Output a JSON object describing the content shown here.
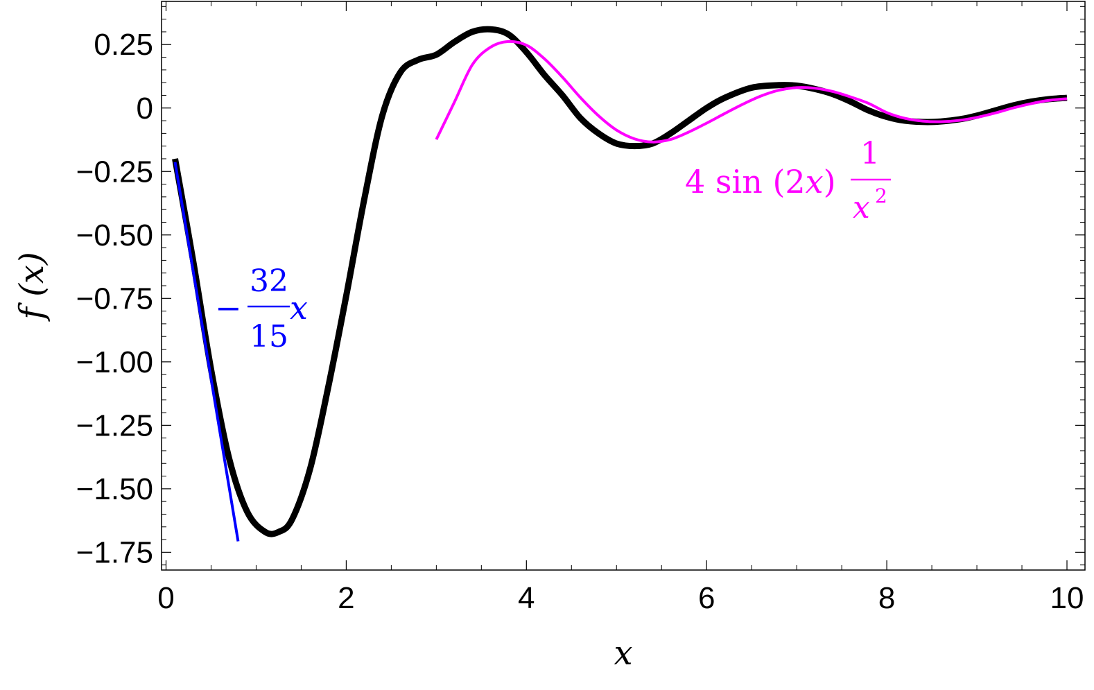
{
  "chart_data": {
    "type": "line",
    "xlabel": "x",
    "ylabel": "f (x)",
    "xlim": [
      -0.05,
      10.2
    ],
    "ylim": [
      -1.82,
      0.42
    ],
    "grid": false,
    "frame": "full box with ticks on all sides",
    "x_ticks": [
      {
        "value": 0,
        "label": "0"
      },
      {
        "value": 2,
        "label": "2"
      },
      {
        "value": 4,
        "label": "4"
      },
      {
        "value": 6,
        "label": "6"
      },
      {
        "value": 8,
        "label": "8"
      },
      {
        "value": 10,
        "label": "10"
      }
    ],
    "y_ticks": [
      {
        "value": 0.25,
        "label": "0.25"
      },
      {
        "value": 0,
        "label": "0"
      },
      {
        "value": -0.25,
        "label": "−0.25"
      },
      {
        "value": -0.5,
        "label": "−0.50"
      },
      {
        "value": -0.75,
        "label": "−0.75"
      },
      {
        "value": -1.0,
        "label": "−1.00"
      },
      {
        "value": -1.25,
        "label": "−1.25"
      },
      {
        "value": -1.5,
        "label": "−1.50"
      },
      {
        "value": -1.75,
        "label": "−1.75"
      }
    ],
    "series": [
      {
        "color": "#000000",
        "points": [
          [
            0.1,
            -0.2
          ],
          [
            0.3,
            -0.6
          ],
          [
            0.5,
            -1.03
          ],
          [
            0.7,
            -1.38
          ],
          [
            0.9,
            -1.59
          ],
          [
            1.1,
            -1.67
          ],
          [
            1.25,
            -1.67
          ],
          [
            1.4,
            -1.62
          ],
          [
            1.6,
            -1.42
          ],
          [
            1.8,
            -1.1
          ],
          [
            2.0,
            -0.74
          ],
          [
            2.2,
            -0.36
          ],
          [
            2.4,
            -0.03
          ],
          [
            2.6,
            0.14
          ],
          [
            2.8,
            0.19
          ],
          [
            3.0,
            0.21
          ],
          [
            3.2,
            0.26
          ],
          [
            3.4,
            0.3
          ],
          [
            3.6,
            0.31
          ],
          [
            3.8,
            0.29
          ],
          [
            4.0,
            0.22
          ],
          [
            4.2,
            0.13
          ],
          [
            4.4,
            0.05
          ],
          [
            4.6,
            -0.04
          ],
          [
            4.8,
            -0.1
          ],
          [
            5.0,
            -0.14
          ],
          [
            5.2,
            -0.15
          ],
          [
            5.4,
            -0.14
          ],
          [
            5.6,
            -0.1
          ],
          [
            5.8,
            -0.05
          ],
          [
            6.0,
            0.0
          ],
          [
            6.2,
            0.04
          ],
          [
            6.5,
            0.08
          ],
          [
            6.8,
            0.09
          ],
          [
            7.0,
            0.088
          ],
          [
            7.2,
            0.075
          ],
          [
            7.4,
            0.055
          ],
          [
            7.6,
            0.025
          ],
          [
            7.8,
            -0.01
          ],
          [
            8.0,
            -0.035
          ],
          [
            8.2,
            -0.05
          ],
          [
            8.5,
            -0.055
          ],
          [
            8.8,
            -0.045
          ],
          [
            9.0,
            -0.03
          ],
          [
            9.2,
            -0.01
          ],
          [
            9.4,
            0.01
          ],
          [
            9.6,
            0.025
          ],
          [
            9.8,
            0.035
          ],
          [
            10.0,
            0.04
          ]
        ]
      },
      {
        "color": "#0000ff",
        "points": [
          [
            0.1,
            -0.2133
          ],
          [
            0.8,
            -1.7067
          ]
        ]
      },
      {
        "color": "#ff00ff",
        "points": [
          [
            3.0,
            -0.124
          ],
          [
            3.2,
            0.0226
          ],
          [
            3.4,
            0.1705
          ],
          [
            3.6,
            0.2391
          ],
          [
            3.8,
            0.2618
          ],
          [
            4.0,
            0.2474
          ],
          [
            4.2,
            0.1939
          ],
          [
            4.4,
            0.1215
          ],
          [
            4.6,
            0.0409
          ],
          [
            4.8,
            -0.0305
          ],
          [
            5.0,
            -0.087
          ],
          [
            5.2,
            -0.1215
          ],
          [
            5.4,
            -0.134
          ],
          [
            5.6,
            -0.1239
          ],
          [
            5.8,
            -0.095
          ],
          [
            6.0,
            -0.0597
          ],
          [
            6.2,
            -0.022
          ],
          [
            6.4,
            0.0145
          ],
          [
            6.6,
            0.0467
          ],
          [
            6.8,
            0.0697
          ],
          [
            7.0,
            0.0804
          ],
          [
            7.2,
            0.078
          ],
          [
            7.4,
            0.065
          ],
          [
            7.6,
            0.0434
          ],
          [
            7.8,
            0.018
          ],
          [
            8.0,
            -0.018
          ],
          [
            8.2,
            -0.0405
          ],
          [
            8.4,
            -0.0515
          ],
          [
            8.6,
            -0.054
          ],
          [
            8.8,
            -0.049
          ],
          [
            9.0,
            -0.037
          ],
          [
            9.2,
            -0.02
          ],
          [
            9.4,
            0.0
          ],
          [
            9.6,
            0.017
          ],
          [
            9.8,
            0.03
          ],
          [
            10.0,
            0.0365
          ]
        ]
      }
    ],
    "annotations": [
      {
        "text": "−32/15 x",
        "color": "#0000ff",
        "at": [
          0.6,
          -0.78
        ]
      },
      {
        "text": "4 sin (2x) 1/x²",
        "color": "#ff00ff",
        "at": [
          7.2,
          -0.28
        ]
      }
    ]
  },
  "labels": {
    "blue": {
      "minus": "−",
      "num": "32",
      "den": "15",
      "var": "x"
    },
    "magenta": {
      "prefix": "4 sin (2",
      "var": "x",
      "close": ") ",
      "num": "1",
      "den_var": "x",
      "den_exp": "2"
    }
  }
}
